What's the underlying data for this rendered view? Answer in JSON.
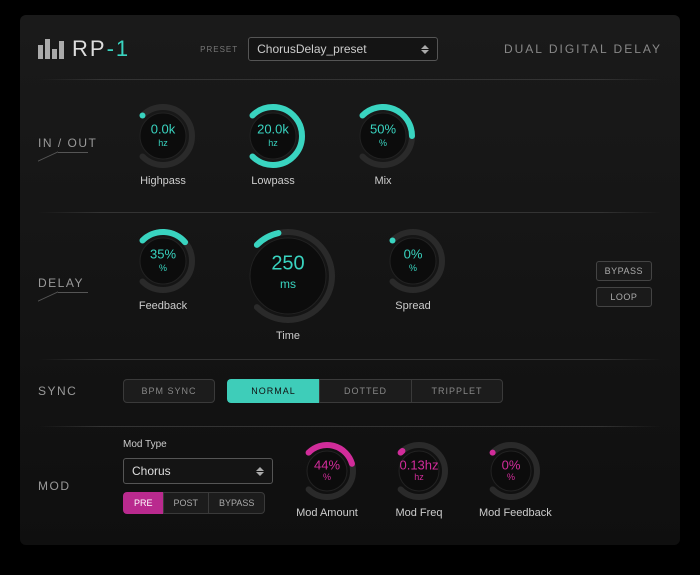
{
  "brand": {
    "name": "RP",
    "suffix": "-1"
  },
  "subtitle": "DUAL DIGITAL DELAY",
  "preset": {
    "label": "PRESET",
    "value": "ChorusDelay_preset"
  },
  "colors": {
    "accent_teal": "#39d4c0",
    "accent_magenta": "#d12c9a",
    "track": "#333"
  },
  "sections": {
    "inout": {
      "label": "IN / OUT",
      "knobs": [
        {
          "name": "highpass",
          "label": "Highpass",
          "value": "0.0k",
          "unit": "hz",
          "percent": 0,
          "size": 70,
          "color": "#39d4c0"
        },
        {
          "name": "lowpass",
          "label": "Lowpass",
          "value": "20.0k",
          "unit": "hz",
          "percent": 100,
          "size": 70,
          "color": "#39d4c0"
        },
        {
          "name": "mix",
          "label": "Mix",
          "value": "50%",
          "unit": "%",
          "percent": 50,
          "size": 70,
          "color": "#39d4c0"
        }
      ]
    },
    "delay": {
      "label": "DELAY",
      "knobs": [
        {
          "name": "feedback",
          "label": "Feedback",
          "value": "35%",
          "unit": "%",
          "percent": 35,
          "size": 70,
          "color": "#39d4c0"
        },
        {
          "name": "time",
          "label": "Time",
          "value": "250",
          "unit": "ms",
          "percent": 12,
          "size": 100,
          "color": "#39d4c0"
        },
        {
          "name": "spread",
          "label": "Spread",
          "value": "0%",
          "unit": "%",
          "percent": 0,
          "size": 70,
          "color": "#39d4c0"
        }
      ],
      "side": [
        {
          "name": "bypass",
          "label": "BYPASS"
        },
        {
          "name": "loop",
          "label": "LOOP"
        }
      ]
    },
    "sync": {
      "label": "SYNC",
      "bpm": "BPM SYNC",
      "modes": [
        {
          "name": "normal",
          "label": "NORMAL",
          "active": true
        },
        {
          "name": "dotted",
          "label": "DOTTED",
          "active": false
        },
        {
          "name": "tripplet",
          "label": "TRIPPLET",
          "active": false
        }
      ]
    },
    "mod": {
      "label": "MOD",
      "type_label": "Mod Type",
      "type_value": "Chorus",
      "routing": [
        {
          "name": "pre",
          "label": "PRE",
          "active": true
        },
        {
          "name": "post",
          "label": "POST",
          "active": false
        },
        {
          "name": "bypass",
          "label": "BYPASS",
          "active": false
        }
      ],
      "knobs": [
        {
          "name": "mod-amount",
          "label": "Mod Amount",
          "value": "44%",
          "unit": "%",
          "percent": 44,
          "size": 64,
          "color": "#d12c9a"
        },
        {
          "name": "mod-freq",
          "label": "Mod Freq",
          "value": "0.13hz",
          "unit": "hz",
          "percent": 2,
          "size": 64,
          "color": "#d12c9a"
        },
        {
          "name": "mod-feedback",
          "label": "Mod Feedback",
          "value": "0%",
          "unit": "%",
          "percent": 0,
          "size": 64,
          "color": "#d12c9a"
        }
      ]
    }
  }
}
